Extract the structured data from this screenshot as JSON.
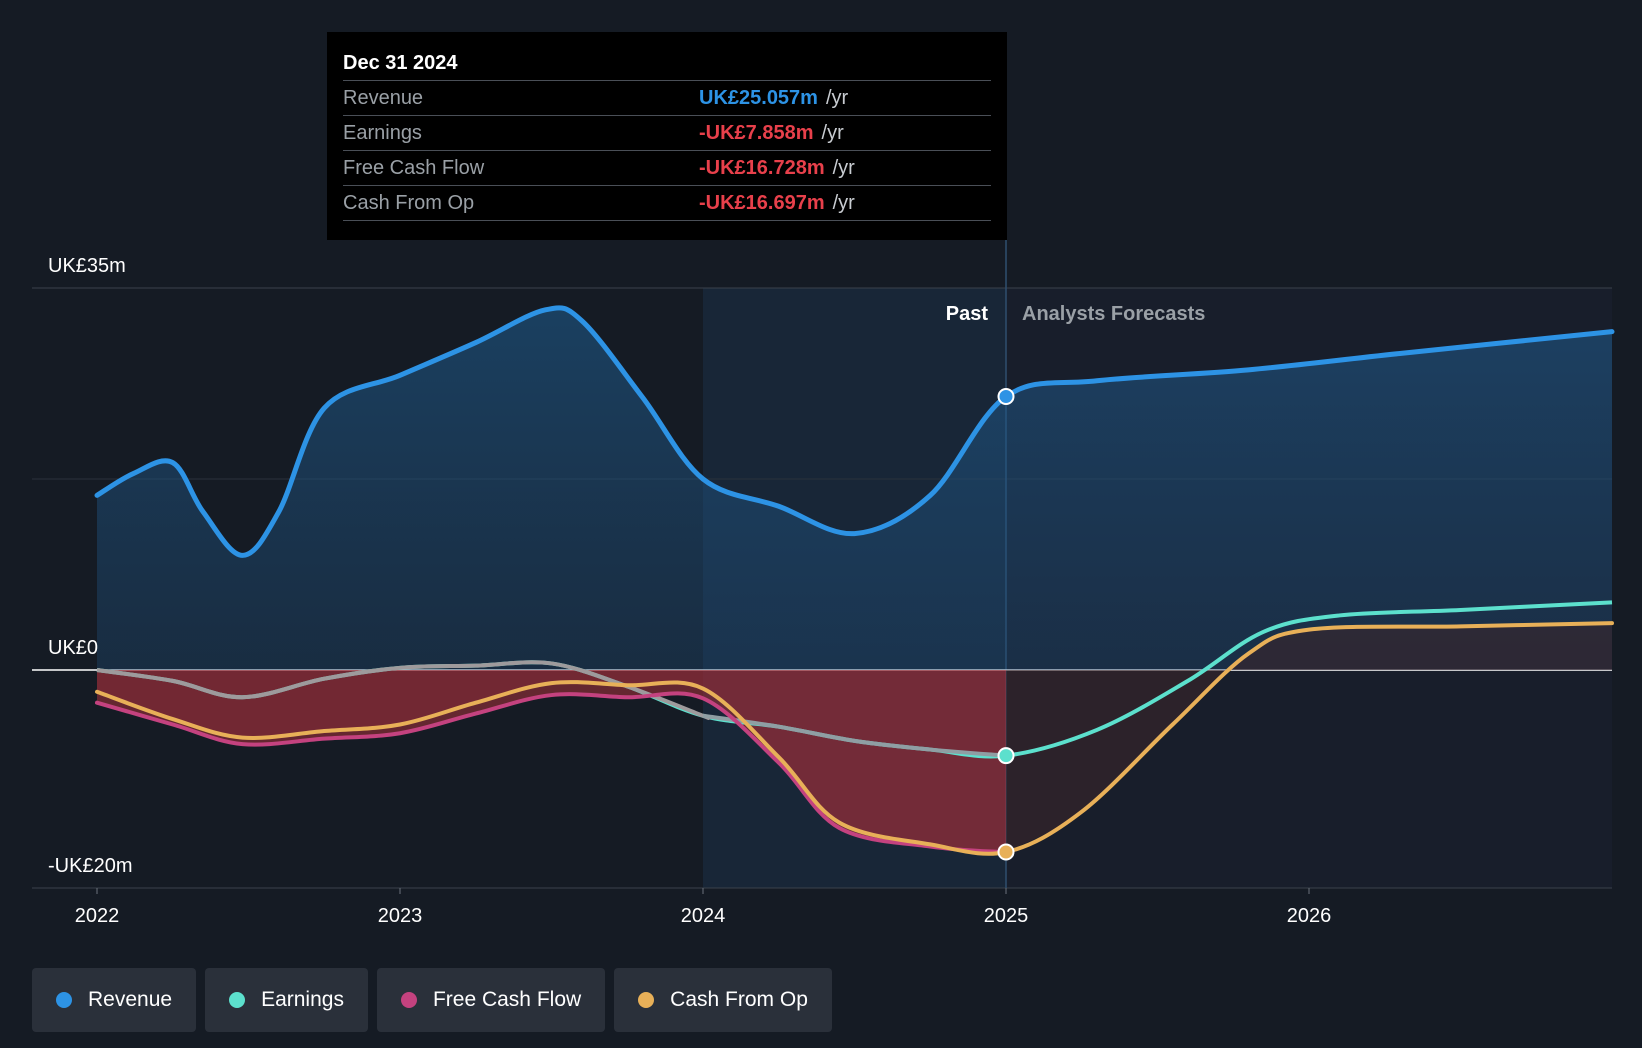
{
  "tooltip": {
    "date": "Dec 31 2024",
    "rows": [
      {
        "label": "Revenue",
        "value": "UK£25.057m",
        "unit": "/yr",
        "color": "#2d93e5"
      },
      {
        "label": "Earnings",
        "value": "-UK£7.858m",
        "unit": "/yr",
        "color": "#e8404b"
      },
      {
        "label": "Free Cash Flow",
        "value": "-UK£16.728m",
        "unit": "/yr",
        "color": "#e8404b"
      },
      {
        "label": "Cash From Op",
        "value": "-UK£16.697m",
        "unit": "/yr",
        "color": "#e8404b"
      }
    ]
  },
  "legend": [
    {
      "label": "Revenue",
      "color": "#2d93e5"
    },
    {
      "label": "Earnings",
      "color": "#5ce0cd"
    },
    {
      "label": "Free Cash Flow",
      "color": "#c4427f"
    },
    {
      "label": "Cash From Op",
      "color": "#e8b058"
    }
  ],
  "chart_data": {
    "type": "line",
    "title": "",
    "xlabel": "",
    "ylabel": "",
    "ylim": [
      -20,
      35
    ],
    "y_tick_labels": [
      {
        "value": 35,
        "label": "UK£35m"
      },
      {
        "value": 0,
        "label": "UK£0"
      },
      {
        "value": -20,
        "label": "-UK£20m"
      }
    ],
    "x_ticks": [
      2022,
      2023,
      2024,
      2025,
      2026
    ],
    "xlim": [
      2021.8,
      2027.0
    ],
    "past_label": "Past",
    "forecast_label": "Analysts Forecasts",
    "forecast_start": 2025.0,
    "highlight_start": 2024.0,
    "series": [
      {
        "name": "Revenue",
        "color": "#2d93e5",
        "points": [
          [
            2022.0,
            16.0
          ],
          [
            2022.12,
            18.0
          ],
          [
            2022.25,
            19.0
          ],
          [
            2022.35,
            14.5
          ],
          [
            2022.48,
            10.5
          ],
          [
            2022.6,
            14.5
          ],
          [
            2022.75,
            24.0
          ],
          [
            2023.0,
            27.0
          ],
          [
            2023.25,
            30.0
          ],
          [
            2023.48,
            33.0
          ],
          [
            2023.6,
            32.0
          ],
          [
            2023.8,
            25.0
          ],
          [
            2024.0,
            17.5
          ],
          [
            2024.25,
            15.0
          ],
          [
            2024.5,
            12.5
          ],
          [
            2024.75,
            16.0
          ],
          [
            2025.0,
            25.057
          ],
          [
            2025.3,
            26.5
          ],
          [
            2025.8,
            27.5
          ],
          [
            2026.3,
            29.0
          ],
          [
            2027.0,
            31.0
          ]
        ],
        "marker_at": 2025.0
      },
      {
        "name": "Earnings",
        "color": "#5ce0cd",
        "points": [
          [
            2022.0,
            0.0
          ],
          [
            2022.25,
            -1.0
          ],
          [
            2022.48,
            -2.5
          ],
          [
            2022.75,
            -0.8
          ],
          [
            2023.0,
            0.2
          ],
          [
            2023.25,
            0.4
          ],
          [
            2023.5,
            0.6
          ],
          [
            2023.75,
            -1.5
          ],
          [
            2024.0,
            -4.2
          ],
          [
            2024.25,
            -5.2
          ],
          [
            2024.5,
            -6.5
          ],
          [
            2024.75,
            -7.3
          ],
          [
            2025.0,
            -7.858
          ],
          [
            2025.3,
            -5.5
          ],
          [
            2025.6,
            -1.0
          ],
          [
            2025.85,
            3.5
          ],
          [
            2026.1,
            5.0
          ],
          [
            2026.5,
            5.5
          ],
          [
            2027.0,
            6.2
          ]
        ],
        "marker_at": 2025.0
      },
      {
        "name": "Free Cash Flow",
        "color": "#c4427f",
        "points": [
          [
            2022.0,
            -3.0
          ],
          [
            2022.25,
            -5.0
          ],
          [
            2022.48,
            -6.8
          ],
          [
            2022.75,
            -6.3
          ],
          [
            2023.0,
            -5.8
          ],
          [
            2023.25,
            -4.0
          ],
          [
            2023.5,
            -2.3
          ],
          [
            2023.75,
            -2.5
          ],
          [
            2024.0,
            -2.6
          ],
          [
            2024.25,
            -8.5
          ],
          [
            2024.45,
            -14.5
          ],
          [
            2024.75,
            -16.2
          ],
          [
            2025.0,
            -16.728
          ]
        ]
      },
      {
        "name": "Cash From Op",
        "color": "#e8b058",
        "points": [
          [
            2022.0,
            -2.0
          ],
          [
            2022.25,
            -4.5
          ],
          [
            2022.48,
            -6.2
          ],
          [
            2022.75,
            -5.6
          ],
          [
            2023.0,
            -5.0
          ],
          [
            2023.25,
            -3.0
          ],
          [
            2023.5,
            -1.2
          ],
          [
            2023.75,
            -1.4
          ],
          [
            2024.0,
            -1.7
          ],
          [
            2024.25,
            -8.0
          ],
          [
            2024.45,
            -14.0
          ],
          [
            2024.75,
            -16.0
          ],
          [
            2025.0,
            -16.697
          ],
          [
            2025.25,
            -13.0
          ],
          [
            2025.55,
            -5.0
          ],
          [
            2025.8,
            1.5
          ],
          [
            2026.0,
            3.7
          ],
          [
            2026.5,
            4.0
          ],
          [
            2027.0,
            4.3
          ]
        ],
        "marker_at": 2025.0
      }
    ]
  }
}
